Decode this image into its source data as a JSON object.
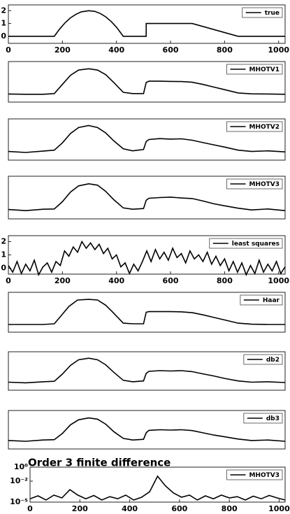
{
  "chart_data": [
    {
      "type": "line",
      "legend": "upper right",
      "xlim": [
        0,
        1024
      ],
      "ylim": [
        -0.55,
        2.45
      ],
      "xticks": [
        0,
        200,
        400,
        600,
        800,
        1000
      ],
      "yticks": [
        0,
        1,
        2
      ],
      "x": [
        0,
        170,
        190,
        210,
        230,
        250,
        270,
        297,
        320,
        340,
        360,
        380,
        400,
        425,
        510,
        510,
        680,
        850,
        1024
      ],
      "series": [
        {
          "name": "true",
          "color": "#000000",
          "values": [
            0,
            0,
            0.58,
            1.06,
            1.44,
            1.72,
            1.91,
            2,
            1.94,
            1.78,
            1.52,
            1.16,
            0.71,
            0,
            0,
            1,
            1,
            0,
            0
          ]
        }
      ]
    },
    {
      "type": "line",
      "legend": "upper right",
      "xlim": [
        0,
        1024
      ],
      "ylim": [
        -0.6,
        2.5
      ],
      "x": [
        0,
        64,
        128,
        170,
        200,
        230,
        260,
        297,
        330,
        360,
        390,
        425,
        460,
        500,
        510,
        520,
        560,
        600,
        640,
        680,
        720,
        760,
        800,
        850,
        900,
        960,
        1024
      ],
      "series": [
        {
          "name": "MHOTV1",
          "color": "#000000",
          "values": [
            0.02,
            0,
            0,
            0.05,
            0.75,
            1.45,
            1.85,
            1.95,
            1.85,
            1.5,
            0.9,
            0.15,
            0.05,
            0.05,
            0.9,
            1.0,
            1.0,
            0.98,
            0.97,
            0.92,
            0.75,
            0.55,
            0.35,
            0.1,
            0.03,
            0.02,
            0
          ]
        }
      ]
    },
    {
      "type": "line",
      "legend": "upper right",
      "xlim": [
        0,
        1024
      ],
      "ylim": [
        -0.6,
        2.5
      ],
      "x": [
        0,
        64,
        128,
        170,
        200,
        230,
        260,
        297,
        330,
        360,
        390,
        425,
        460,
        500,
        510,
        520,
        560,
        600,
        640,
        680,
        720,
        760,
        800,
        850,
        900,
        960,
        1024
      ],
      "series": [
        {
          "name": "MHOTV2",
          "color": "#000000",
          "values": [
            0.05,
            -0.02,
            0.08,
            0.15,
            0.7,
            1.4,
            1.85,
            2.0,
            1.85,
            1.45,
            0.85,
            0.25,
            0.1,
            0.2,
            0.8,
            0.95,
            1.02,
            0.98,
            1.0,
            0.9,
            0.72,
            0.55,
            0.38,
            0.15,
            0.05,
            0.1,
            0.02
          ]
        }
      ]
    },
    {
      "type": "line",
      "legend": "upper right",
      "xlim": [
        0,
        1024
      ],
      "ylim": [
        -0.6,
        2.5
      ],
      "x": [
        0,
        64,
        128,
        170,
        200,
        230,
        260,
        297,
        330,
        360,
        390,
        425,
        460,
        500,
        510,
        520,
        560,
        600,
        640,
        680,
        720,
        760,
        800,
        850,
        900,
        960,
        1024
      ],
      "series": [
        {
          "name": "MHOTV3",
          "color": "#000000",
          "values": [
            0.08,
            0.0,
            0.1,
            0.12,
            0.65,
            1.35,
            1.8,
            1.95,
            1.85,
            1.4,
            0.8,
            0.2,
            0.1,
            0.15,
            0.75,
            0.9,
            0.95,
            0.98,
            0.92,
            0.88,
            0.7,
            0.5,
            0.35,
            0.18,
            0.05,
            0.12,
            0.0
          ]
        }
      ]
    },
    {
      "type": "line",
      "legend": "upper right",
      "xlim": [
        0,
        1024
      ],
      "ylim": [
        -0.45,
        2.45
      ],
      "xticks": [
        0,
        200,
        400,
        600,
        800,
        1000
      ],
      "yticks": [
        0,
        1,
        2
      ],
      "x": [
        0,
        16,
        32,
        48,
        64,
        80,
        96,
        112,
        128,
        144,
        160,
        176,
        192,
        208,
        224,
        240,
        256,
        272,
        288,
        304,
        320,
        336,
        352,
        368,
        384,
        400,
        416,
        432,
        448,
        464,
        480,
        496,
        512,
        528,
        544,
        560,
        576,
        592,
        608,
        624,
        640,
        656,
        672,
        688,
        704,
        720,
        736,
        752,
        768,
        784,
        800,
        816,
        832,
        848,
        864,
        880,
        896,
        912,
        928,
        944,
        960,
        976,
        992,
        1008,
        1024
      ],
      "series": [
        {
          "name": "least squares",
          "color": "#000000",
          "values": [
            0.2,
            -0.3,
            0.5,
            -0.4,
            0.3,
            -0.2,
            0.6,
            -0.5,
            0.1,
            0.4,
            -0.3,
            0.5,
            0.2,
            1.3,
            0.9,
            1.6,
            1.2,
            2.0,
            1.5,
            1.9,
            1.4,
            1.8,
            1.1,
            1.5,
            0.7,
            1.0,
            0.1,
            0.4,
            -0.4,
            0.3,
            -0.2,
            0.5,
            1.3,
            0.5,
            1.4,
            0.7,
            1.2,
            0.6,
            1.5,
            0.8,
            1.1,
            0.4,
            1.3,
            0.7,
            1.0,
            0.5,
            1.2,
            0.3,
            0.9,
            0.2,
            0.7,
            -0.2,
            0.5,
            -0.3,
            0.4,
            -0.5,
            0.2,
            -0.4,
            0.6,
            -0.3,
            0.3,
            -0.2,
            0.5,
            -0.4,
            0.1
          ]
        }
      ]
    },
    {
      "type": "line",
      "legend": "upper right",
      "xlim": [
        0,
        1024
      ],
      "ylim": [
        -0.6,
        2.5
      ],
      "x": [
        0,
        64,
        128,
        170,
        192,
        224,
        256,
        297,
        330,
        360,
        384,
        425,
        460,
        500,
        510,
        520,
        560,
        600,
        640,
        680,
        720,
        760,
        800,
        850,
        900,
        960,
        1024
      ],
      "series": [
        {
          "name": "Haar",
          "color": "#000000",
          "values": [
            0,
            0,
            0,
            0.05,
            0.6,
            1.4,
            1.9,
            1.95,
            1.9,
            1.5,
            1.0,
            0.1,
            0.05,
            0.05,
            0.95,
            1.0,
            1.0,
            1.0,
            0.98,
            0.92,
            0.75,
            0.55,
            0.35,
            0.1,
            0.02,
            0,
            0
          ]
        }
      ]
    },
    {
      "type": "line",
      "legend": "upper right",
      "xlim": [
        0,
        1024
      ],
      "ylim": [
        -0.6,
        2.5
      ],
      "x": [
        0,
        64,
        128,
        170,
        200,
        230,
        260,
        297,
        330,
        360,
        390,
        425,
        460,
        500,
        510,
        520,
        560,
        600,
        640,
        680,
        720,
        760,
        800,
        850,
        900,
        960,
        1024
      ],
      "series": [
        {
          "name": "db2",
          "color": "#000000",
          "values": [
            0.05,
            0.0,
            0.08,
            0.12,
            0.7,
            1.4,
            1.85,
            1.98,
            1.85,
            1.45,
            0.85,
            0.2,
            0.08,
            0.15,
            0.75,
            0.92,
            0.98,
            0.95,
            0.98,
            0.9,
            0.72,
            0.55,
            0.35,
            0.15,
            0.05,
            0.08,
            0.02
          ]
        }
      ]
    },
    {
      "type": "line",
      "legend": "upper right",
      "xlim": [
        0,
        1024
      ],
      "ylim": [
        -0.6,
        2.5
      ],
      "x": [
        0,
        64,
        128,
        170,
        200,
        230,
        260,
        297,
        330,
        360,
        390,
        425,
        460,
        500,
        510,
        520,
        560,
        600,
        640,
        680,
        720,
        760,
        800,
        850,
        900,
        960,
        1024
      ],
      "series": [
        {
          "name": "db3",
          "color": "#000000",
          "values": [
            0.08,
            0.02,
            0.12,
            0.15,
            0.65,
            1.35,
            1.75,
            1.9,
            1.8,
            1.4,
            0.8,
            0.25,
            0.12,
            0.18,
            0.7,
            0.9,
            0.95,
            0.92,
            0.95,
            0.88,
            0.7,
            0.52,
            0.38,
            0.2,
            0.08,
            0.12,
            0.02
          ]
        }
      ]
    },
    {
      "type": "line",
      "log": true,
      "title": "Order 3 finite difference",
      "legend": "upper right",
      "xlim": [
        0,
        1024
      ],
      "ylim": [
        1e-05,
        1
      ],
      "xticks": [
        0,
        200,
        400,
        600,
        800,
        1000
      ],
      "yticks": [
        {
          "value": 1,
          "label": "10⁰"
        },
        {
          "value": 0.01,
          "label": "10⁻²"
        },
        {
          "value": 1e-05,
          "label": "10⁻⁵"
        }
      ],
      "x": [
        0,
        32,
        64,
        96,
        128,
        160,
        192,
        224,
        256,
        288,
        320,
        352,
        384,
        416,
        448,
        480,
        512,
        544,
        576,
        608,
        640,
        672,
        704,
        736,
        768,
        800,
        832,
        864,
        896,
        928,
        960,
        992,
        1024
      ],
      "series": [
        {
          "name": "MHOTV3",
          "color": "#000000",
          "values": [
            3e-05,
            8e-05,
            2e-05,
            0.0001,
            4e-05,
            0.0006,
            0.0001,
            3e-05,
            9e-05,
            2e-05,
            6e-05,
            3e-05,
            0.0001,
            2e-05,
            5e-05,
            0.0003,
            0.05,
            0.002,
            0.0002,
            5e-05,
            0.0001,
            2e-05,
            8e-05,
            3e-05,
            0.0001,
            4e-05,
            6e-05,
            2e-05,
            7e-05,
            3e-05,
            9e-05,
            4e-05,
            2e-05
          ]
        }
      ]
    }
  ]
}
